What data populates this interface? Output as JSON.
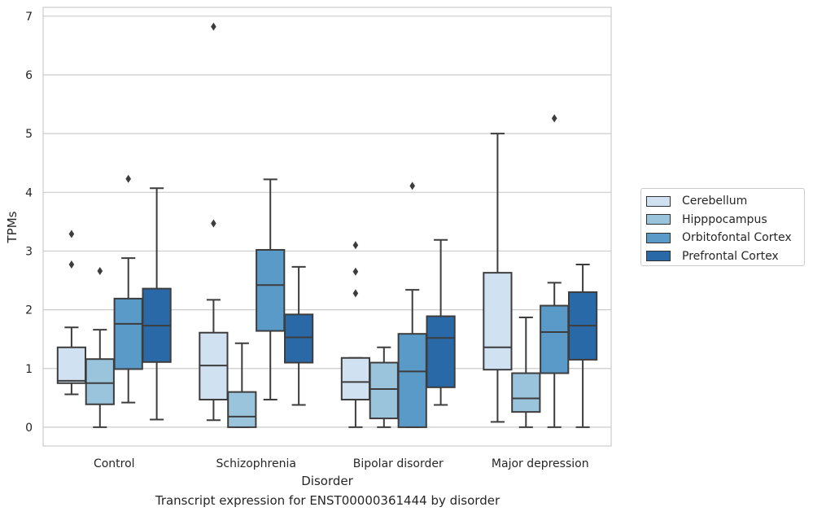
{
  "chart_data": {
    "type": "box",
    "title": "",
    "xlabel": "Disorder",
    "ylabel": "TPMs",
    "caption": "Transcript expression for ENST00000361444 by disorder",
    "ylim": [
      -0.32,
      7.15
    ],
    "yticks": [
      0,
      1,
      2,
      3,
      4,
      5,
      6,
      7
    ],
    "grid": "horizontal",
    "legend_position": "right, outside plot",
    "categories": [
      "Control",
      "Schizophrenia",
      "Bipolar disorder",
      "Major depression"
    ],
    "series": [
      {
        "name": "Cerebellum",
        "color": "#d0e1f2",
        "boxes": [
          {
            "whislo": 0.56,
            "q1": 0.75,
            "med": 0.79,
            "q3": 1.36,
            "whishi": 1.7,
            "fliers": [
              2.77,
              3.29
            ]
          },
          {
            "whislo": 0.12,
            "q1": 0.47,
            "med": 1.05,
            "q3": 1.61,
            "whishi": 2.17,
            "fliers": [
              3.47,
              6.82
            ]
          },
          {
            "whislo": 0.0,
            "q1": 0.47,
            "med": 0.77,
            "q3": 1.18,
            "whishi": 1.18,
            "fliers": [
              2.28,
              2.65,
              3.1
            ]
          },
          {
            "whislo": 0.09,
            "q1": 0.98,
            "med": 1.36,
            "q3": 2.63,
            "whishi": 5.0,
            "fliers": []
          }
        ]
      },
      {
        "name": "Hipppocampus",
        "color": "#9ac3dc",
        "boxes": [
          {
            "whislo": 0.0,
            "q1": 0.39,
            "med": 0.75,
            "q3": 1.16,
            "whishi": 1.66,
            "fliers": [
              2.66
            ]
          },
          {
            "whislo": 0.0,
            "q1": 0.0,
            "med": 0.18,
            "q3": 0.6,
            "whishi": 1.43,
            "fliers": []
          },
          {
            "whislo": 0.0,
            "q1": 0.15,
            "med": 0.65,
            "q3": 1.1,
            "whishi": 1.36,
            "fliers": []
          },
          {
            "whislo": 0.0,
            "q1": 0.26,
            "med": 0.49,
            "q3": 0.92,
            "whishi": 1.87,
            "fliers": []
          }
        ]
      },
      {
        "name": "Orbitofontal Cortex",
        "color": "#5a9ac9",
        "boxes": [
          {
            "whislo": 0.42,
            "q1": 0.99,
            "med": 1.76,
            "q3": 2.19,
            "whishi": 2.88,
            "fliers": [
              4.23
            ]
          },
          {
            "whislo": 0.47,
            "q1": 1.64,
            "med": 2.42,
            "q3": 3.02,
            "whishi": 4.22,
            "fliers": []
          },
          {
            "whislo": 0.0,
            "q1": 0.0,
            "med": 0.95,
            "q3": 1.59,
            "whishi": 2.34,
            "fliers": [
              4.11
            ]
          },
          {
            "whislo": 0.0,
            "q1": 0.92,
            "med": 1.62,
            "q3": 2.07,
            "whishi": 2.46,
            "fliers": [
              5.26
            ]
          }
        ]
      },
      {
        "name": "Prefrontal Cortex",
        "color": "#2a69a8",
        "boxes": [
          {
            "whislo": 0.13,
            "q1": 1.11,
            "med": 1.73,
            "q3": 2.36,
            "whishi": 4.07,
            "fliers": []
          },
          {
            "whislo": 0.38,
            "q1": 1.1,
            "med": 1.53,
            "q3": 1.92,
            "whishi": 2.73,
            "fliers": []
          },
          {
            "whislo": 0.38,
            "q1": 0.68,
            "med": 1.52,
            "q3": 1.89,
            "whishi": 3.19,
            "fliers": []
          },
          {
            "whislo": 0.0,
            "q1": 1.15,
            "med": 1.73,
            "q3": 2.3,
            "whishi": 2.77,
            "fliers": []
          }
        ]
      }
    ]
  }
}
